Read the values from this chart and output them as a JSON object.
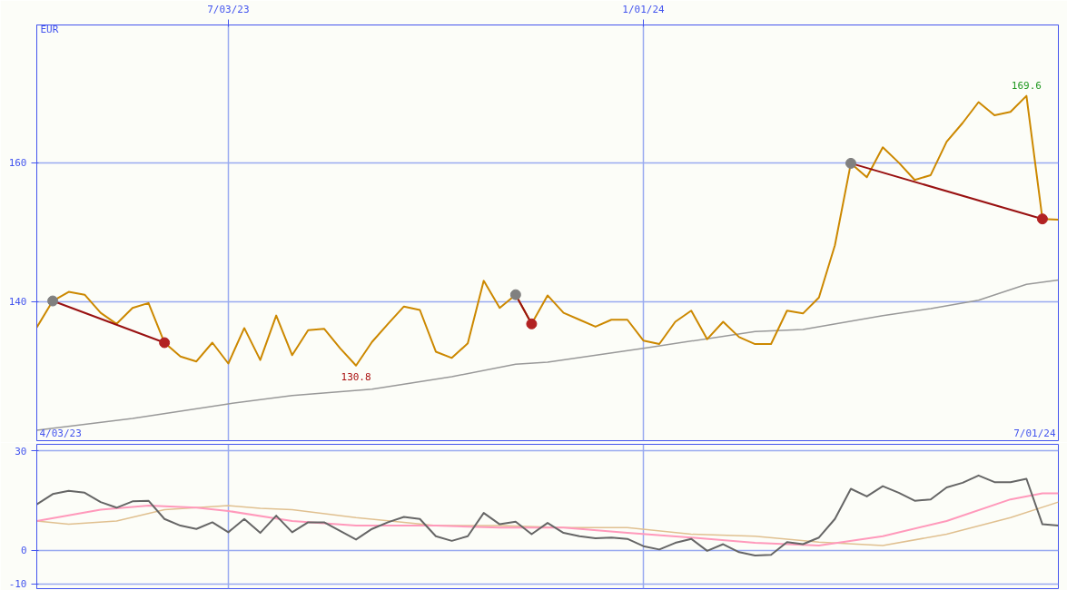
{
  "chart_data": [
    {
      "type": "line",
      "ylabel": "EUR",
      "x": [
        "2023-04-10",
        "2023-04-17",
        "2023-04-24",
        "2023-05-01",
        "2023-05-08",
        "2023-05-15",
        "2023-05-22",
        "2023-05-29",
        "2023-06-05",
        "2023-06-12",
        "2023-06-19",
        "2023-06-26",
        "2023-07-03",
        "2023-07-10",
        "2023-07-17",
        "2023-07-24",
        "2023-07-31",
        "2023-08-07",
        "2023-08-14",
        "2023-08-21",
        "2023-08-28",
        "2023-09-04",
        "2023-09-11",
        "2023-09-18",
        "2023-09-25",
        "2023-10-02",
        "2023-10-09",
        "2023-10-16",
        "2023-10-23",
        "2023-10-30",
        "2023-11-06",
        "2023-11-13",
        "2023-11-20",
        "2023-11-27",
        "2023-12-04",
        "2023-12-11",
        "2023-12-18",
        "2023-12-25",
        "2024-01-01",
        "2024-01-08",
        "2024-01-15",
        "2024-01-22",
        "2024-01-29",
        "2024-02-05",
        "2024-02-12",
        "2024-02-19",
        "2024-02-26",
        "2024-03-04",
        "2024-03-11",
        "2024-03-18",
        "2024-03-25",
        "2024-04-01",
        "2024-04-08",
        "2024-04-15",
        "2024-04-22",
        "2024-04-29",
        "2024-05-06",
        "2024-05-13",
        "2024-05-20",
        "2024-05-27",
        "2024-06-03",
        "2024-06-10",
        "2024-06-17",
        "2024-06-24",
        "2024-07-01"
      ],
      "series": [
        {
          "color": "#999999",
          "x": [
            "2023-04-10",
            "2023-05-22",
            "2023-07-03",
            "2023-07-31",
            "2023-09-04",
            "2023-10-09",
            "2023-11-06",
            "2023-11-20",
            "2024-01-01",
            "2024-02-19",
            "2024-03-11",
            "2024-04-15",
            "2024-05-06",
            "2024-05-27",
            "2024-06-17",
            "2024-07-01"
          ],
          "values": [
            121.5,
            123.2,
            125.3,
            126.5,
            127.4,
            129.2,
            131.0,
            131.3,
            133.3,
            135.7,
            136.0,
            138.0,
            139.0,
            140.2,
            142.5,
            143.1
          ]
        },
        {
          "color": "#cc8800",
          "values": [
            136.3,
            140.1,
            141.4,
            141.0,
            138.4,
            136.8,
            139.1,
            139.8,
            134.1,
            132.1,
            131.4,
            134.1,
            131.1,
            136.2,
            131.6,
            138.0,
            132.3,
            135.9,
            136.1,
            133.3,
            130.8,
            134.2,
            136.8,
            139.3,
            138.8,
            132.8,
            131.9,
            134.0,
            143.0,
            139.1,
            141.0,
            136.8,
            140.9,
            138.4,
            137.4,
            136.4,
            137.4,
            137.4,
            134.4,
            133.9,
            137.1,
            138.7,
            134.6,
            137.1,
            134.9,
            133.9,
            133.9,
            138.7,
            138.3,
            140.6,
            148.1,
            159.9,
            157.9,
            162.2,
            160.0,
            157.5,
            158.2,
            163.0,
            165.7,
            168.7,
            166.8,
            167.3,
            169.6,
            151.9,
            151.8
          ]
        },
        {
          "color": "#991111",
          "marker": "circle",
          "colors": [
            "#808080",
            "#b22222"
          ],
          "x": [
            "2023-04-17",
            "2023-06-05"
          ],
          "values": [
            140.1,
            134.1
          ]
        },
        {
          "color": "#991111",
          "marker": "circle",
          "colors": [
            "#808080",
            "#b22222"
          ],
          "x": [
            "2023-11-06",
            "2023-11-13"
          ],
          "values": [
            141.0,
            136.8
          ]
        },
        {
          "color": "#991111",
          "marker": "circle",
          "colors": [
            "#808080",
            "#b22222"
          ],
          "x": [
            "2024-04-01",
            "2024-06-24"
          ],
          "values": [
            159.9,
            151.9
          ]
        }
      ],
      "xlim": [
        "2023-04-10",
        "2024-07-01"
      ],
      "xticks": [
        {
          "value": "2023-07-03",
          "label": "7/03/23"
        },
        {
          "value": "2024-01-01",
          "label": "1/01/24"
        }
      ],
      "ylim": [
        120,
        179.8
      ],
      "yticks": [
        140,
        160
      ],
      "grid": true,
      "annotations": [
        "4/03/23",
        "7/01/24",
        {
          "text": "169.6",
          "x": "2024-06-17",
          "y": 169.6
        },
        {
          "text": "130.8",
          "x": "2023-08-28",
          "y": 130.8
        }
      ]
    },
    {
      "type": "line",
      "x": [
        "2023-04-10",
        "2023-04-17",
        "2023-04-24",
        "2023-05-01",
        "2023-05-08",
        "2023-05-15",
        "2023-05-22",
        "2023-05-29",
        "2023-06-05",
        "2023-06-12",
        "2023-06-19",
        "2023-06-26",
        "2023-07-03",
        "2023-07-10",
        "2023-07-17",
        "2023-07-24",
        "2023-07-31",
        "2023-08-07",
        "2023-08-14",
        "2023-08-21",
        "2023-08-28",
        "2023-09-04",
        "2023-09-11",
        "2023-09-18",
        "2023-09-25",
        "2023-10-02",
        "2023-10-09",
        "2023-10-16",
        "2023-10-23",
        "2023-10-30",
        "2023-11-06",
        "2023-11-13",
        "2023-11-20",
        "2023-11-27",
        "2023-12-04",
        "2023-12-11",
        "2023-12-18",
        "2023-12-25",
        "2024-01-01",
        "2024-01-08",
        "2024-01-15",
        "2024-01-22",
        "2024-01-29",
        "2024-02-05",
        "2024-02-12",
        "2024-02-19",
        "2024-02-26",
        "2024-03-04",
        "2024-03-11",
        "2024-03-18",
        "2024-03-25",
        "2024-04-01",
        "2024-04-08",
        "2024-04-15",
        "2024-04-22",
        "2024-04-29",
        "2024-05-06",
        "2024-05-13",
        "2024-05-20",
        "2024-05-27",
        "2024-06-03",
        "2024-06-10",
        "2024-06-17",
        "2024-06-24",
        "2024-07-01"
      ],
      "series": [
        {
          "color": "#e0c090",
          "x": [
            "2023-04-10",
            "2023-04-24",
            "2023-05-15",
            "2023-06-05",
            "2023-07-03",
            "2023-07-17",
            "2023-07-31",
            "2023-08-28",
            "2023-10-02",
            "2023-10-30",
            "2023-11-27",
            "2023-12-25",
            "2024-01-22",
            "2024-02-19",
            "2024-03-18",
            "2024-04-15",
            "2024-05-13",
            "2024-06-10",
            "2024-07-01"
          ],
          "values": [
            8.9,
            7.9,
            8.9,
            12.3,
            13.5,
            12.7,
            12.3,
            9.9,
            7.5,
            7.5,
            6.9,
            6.9,
            4.9,
            4.3,
            2.5,
            1.5,
            4.9,
            9.9,
            14.6
          ]
        },
        {
          "color": "#ff99bb",
          "x": [
            "2023-04-10",
            "2023-05-08",
            "2023-05-29",
            "2023-06-19",
            "2023-07-03",
            "2023-07-31",
            "2023-08-28",
            "2023-10-02",
            "2023-10-30",
            "2023-11-27",
            "2023-12-25",
            "2024-01-22",
            "2024-02-19",
            "2024-03-18",
            "2024-04-15",
            "2024-05-13",
            "2024-06-10",
            "2024-06-24",
            "2024-07-01"
          ],
          "values": [
            8.9,
            12.3,
            13.5,
            12.9,
            11.9,
            8.9,
            7.5,
            7.5,
            6.9,
            6.9,
            5.3,
            3.9,
            2.3,
            1.5,
            4.3,
            8.9,
            15.4,
            17.2,
            17.2
          ]
        },
        {
          "color": "#666666",
          "values": [
            13.9,
            17.0,
            18.0,
            17.4,
            14.6,
            12.9,
            14.8,
            15.0,
            9.5,
            7.5,
            6.5,
            8.5,
            5.5,
            9.5,
            5.3,
            10.5,
            5.5,
            8.5,
            8.5,
            5.9,
            3.3,
            6.5,
            8.5,
            10.1,
            9.5,
            4.3,
            2.9,
            4.3,
            11.3,
            7.9,
            8.7,
            4.9,
            8.3,
            5.3,
            4.3,
            3.7,
            3.9,
            3.5,
            1.3,
            0.3,
            2.3,
            3.5,
            -0.1,
            1.9,
            -0.5,
            -1.5,
            -1.3,
            2.5,
            1.9,
            3.9,
            9.5,
            18.6,
            16.3,
            19.4,
            17.4,
            15.0,
            15.4,
            19.0,
            20.4,
            22.6,
            20.6,
            20.6,
            21.6,
            7.9,
            7.5
          ]
        }
      ],
      "xlim": [
        "2023-04-10",
        "2024-07-01"
      ],
      "xticks": [
        {
          "value": "2023-07-03",
          "label": null
        },
        {
          "value": "2024-01-01",
          "label": null
        }
      ],
      "ylim": [
        -11.5,
        32
      ],
      "yticks": [
        -10,
        0,
        30
      ],
      "grid": true,
      "tick_labels": "y"
    }
  ]
}
